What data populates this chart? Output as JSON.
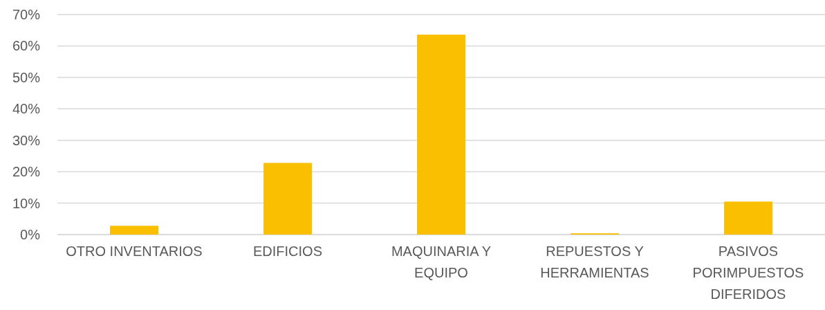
{
  "chart_data": {
    "type": "bar",
    "categories": [
      "OTRO INVENTARIOS",
      "EDIFICIOS",
      "MAQUINARIA Y EQUIPO",
      "REPUESTOS Y HERRAMIENTAS",
      "PASIVOS PORIMPUESTOS DIFERIDOS"
    ],
    "values": [
      2.8,
      22.8,
      63.6,
      0.4,
      10.5
    ],
    "color": "#fac000",
    "ylim": [
      0,
      70
    ],
    "yticks": [
      {
        "value": 0,
        "label": "0%"
      },
      {
        "value": 10,
        "label": "10%"
      },
      {
        "value": 20,
        "label": "20%"
      },
      {
        "value": 30,
        "label": "30%"
      },
      {
        "value": 40,
        "label": "40%"
      },
      {
        "value": 50,
        "label": "50%"
      },
      {
        "value": 60,
        "label": "60%"
      },
      {
        "value": 70,
        "label": "70%"
      }
    ],
    "grid": true
  }
}
